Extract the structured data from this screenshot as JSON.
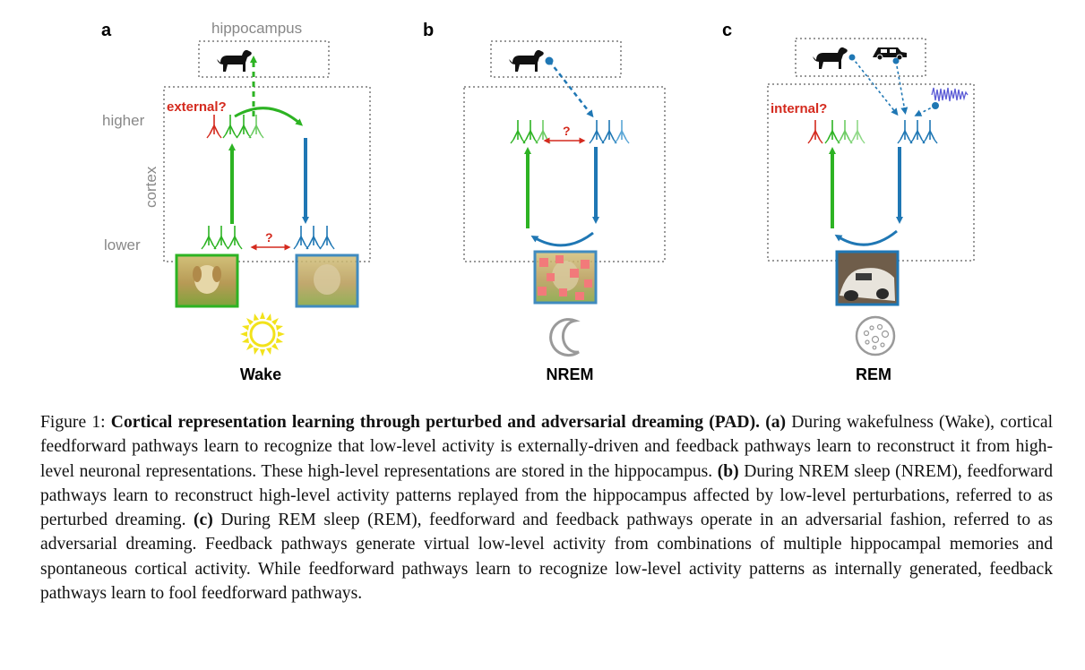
{
  "panels": {
    "a": {
      "letter": "a",
      "hippocampus_label": "hippocampus",
      "higher_label": "higher",
      "cortex_label": "cortex",
      "lower_label": "lower",
      "question_label": "external?",
      "mismatch_mark": "?",
      "state_label": "Wake",
      "state_icon": "sun-icon"
    },
    "b": {
      "letter": "b",
      "mismatch_mark": "?",
      "state_label": "NREM",
      "state_icon": "moon-icon"
    },
    "c": {
      "letter": "c",
      "question_label": "internal?",
      "state_label": "REM",
      "state_icon": "rem-eye-icon"
    }
  },
  "colors": {
    "feedforward": "#2db323",
    "feedback": "#1f77b4",
    "question": "#d42a1e",
    "box": "#9a9a9a",
    "sun": "#f2e21b"
  },
  "caption": {
    "figure_label": "Figure 1:",
    "title": "Cortical representation learning through perturbed and adversarial dreaming (PAD).",
    "a_tag": "(a)",
    "a_text": "During wakefulness (Wake), cortical feedforward pathways learn to recognize that low-level activity is externally-driven and feedback pathways learn to reconstruct it from high-level neuronal representations. These high-level representations are stored in the hippocampus.",
    "b_tag": "(b)",
    "b_text": "During NREM sleep (NREM), feedforward pathways learn to reconstruct high-level activity patterns replayed from the hippocampus affected by low-level perturbations, referred to as perturbed dreaming.",
    "c_tag": "(c)",
    "c_text": "During REM sleep (REM), feedforward and feedback pathways operate in an adversarial fashion, referred to as adversarial dreaming. Feedback pathways generate virtual low-level activity from combinations of multiple hippocampal memories and spontaneous cortical activity. While feedforward pathways learn to recognize low-level activity patterns as internally generated, feedback pathways learn to fool feedforward pathways."
  }
}
